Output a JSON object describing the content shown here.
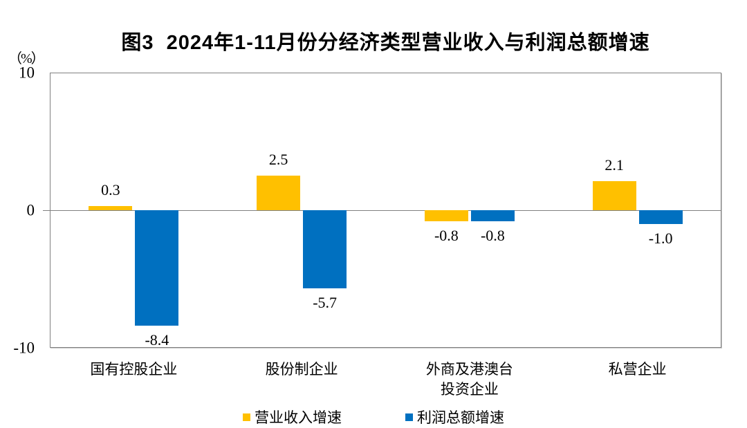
{
  "figure": {
    "title": "图3  2024年1-11月份分经济类型营业收入与利润总额增速",
    "unit_label": "（%）"
  },
  "chart_data": {
    "type": "bar",
    "categories": [
      "国有控股企业",
      "股份制企业",
      "外商及港澳台\n投资企业",
      "私营企业"
    ],
    "series": [
      {
        "name": "营业收入增速",
        "color": "#FFC000",
        "values": [
          0.3,
          2.5,
          -0.8,
          2.1
        ],
        "data_labels": [
          "0.3",
          "2.5",
          "-0.8",
          "2.1"
        ]
      },
      {
        "name": "利润总额增速",
        "color": "#0070C0",
        "values": [
          -8.4,
          -5.7,
          -0.8,
          -1.0
        ],
        "data_labels": [
          "-8.4",
          "-5.7",
          "-0.8",
          "-1.0"
        ]
      }
    ],
    "ylim": [
      -10,
      10
    ],
    "yticks": [
      10,
      0,
      -10
    ],
    "ylabel": "（%）",
    "grid": false,
    "legend_position": "bottom",
    "axis_color": "#808080",
    "label_color": "#000000"
  }
}
